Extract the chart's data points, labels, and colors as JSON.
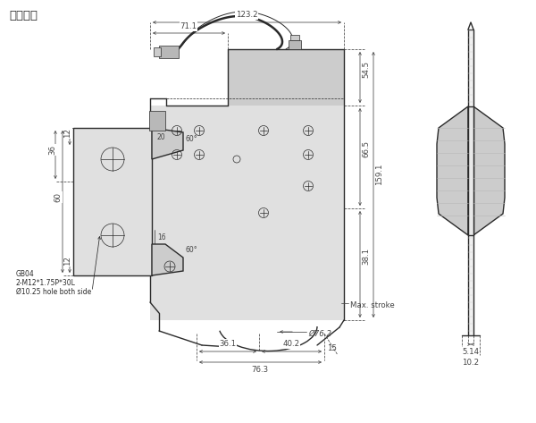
{
  "title": "刀组图面",
  "bg_color": "#ffffff",
  "line_color": "#2a2a2a",
  "dim_color": "#444444",
  "gray1": "#e0e0e0",
  "gray2": "#cccccc",
  "gray3": "#b8b8b8",
  "dims": {
    "overall_width": "123.2",
    "left_width": "71.1",
    "h_total": "159.1",
    "h_top": "54.5",
    "h_mid": "66.5",
    "h_bot": "38.1",
    "w_total": "76.3",
    "w_left": "36.1",
    "w_right": "40.2",
    "w_margin": "15",
    "dia_arc": "Ø76.2",
    "bh_h": "60",
    "bh_mid": "36",
    "bh_t1": "12",
    "bh_t2": "12",
    "bh_d1": "20",
    "bh_d2": "16",
    "ang1": "60°",
    "ang2": "60°",
    "note_line1": "GB04",
    "note_line2": "2-M12*1.75P*30L",
    "note_line3": "Ø10.25 hole both side",
    "max_stroke": "Max. stroke",
    "side_w1": "5.14",
    "side_w2": "10.2"
  }
}
